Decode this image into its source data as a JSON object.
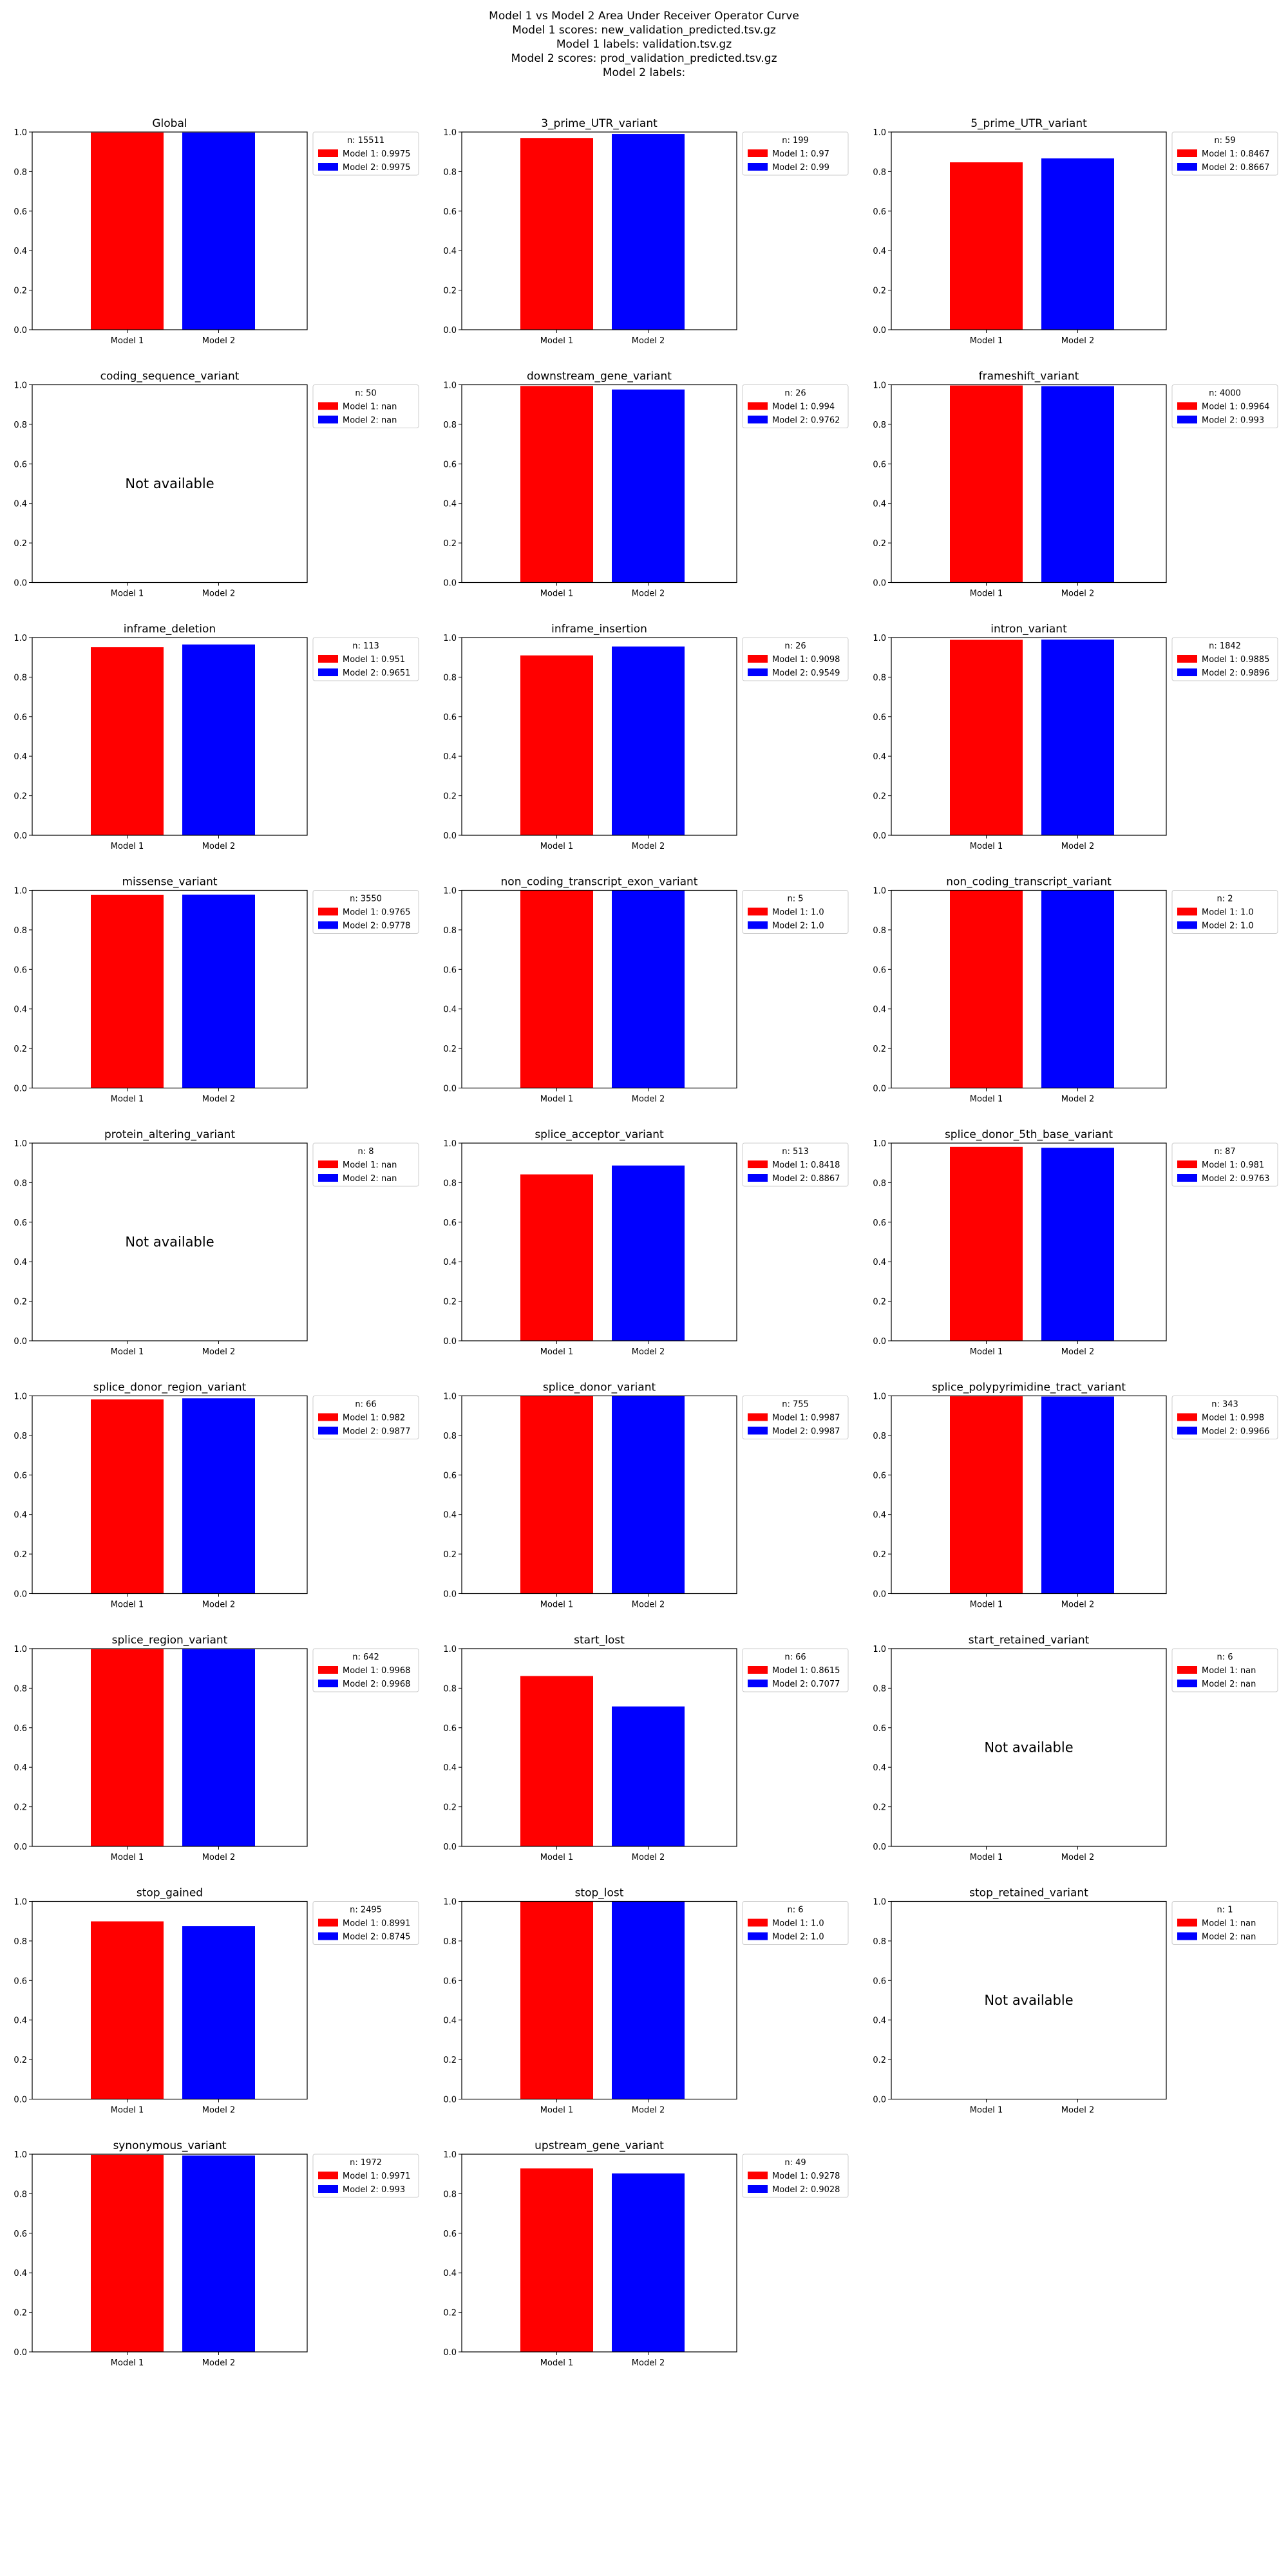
{
  "figure": {
    "title_lines": [
      "Model 1 vs Model 2 Area Under Receiver Operator Curve",
      "Model 1 scores: new_validation_predicted.tsv.gz",
      "Model 1 labels: validation.tsv.gz",
      "Model 2 scores: prod_validation_predicted.tsv.gz",
      "Model 2 labels:"
    ],
    "colors": {
      "model1": "#ff0000",
      "model2": "#0000ff"
    },
    "na_text": "Not available"
  },
  "chart_data": [
    {
      "type": "bar",
      "title": "Global",
      "categories": [
        "Model 1",
        "Model 2"
      ],
      "values": [
        0.9975,
        0.9975
      ],
      "ylim": [
        0,
        1
      ],
      "yticks": [
        "0.0",
        "0.2",
        "0.4",
        "0.6",
        "0.8",
        "1.0"
      ],
      "legend": {
        "n": "n: 15511",
        "entries": [
          "Model 1: 0.9975",
          "Model 2: 0.9975"
        ]
      },
      "available": true
    },
    {
      "type": "bar",
      "title": "3_prime_UTR_variant",
      "categories": [
        "Model 1",
        "Model 2"
      ],
      "values": [
        0.97,
        0.99
      ],
      "ylim": [
        0,
        1
      ],
      "yticks": [
        "0.0",
        "0.2",
        "0.4",
        "0.6",
        "0.8",
        "1.0"
      ],
      "legend": {
        "n": "n: 199",
        "entries": [
          "Model 1: 0.97",
          "Model 2: 0.99"
        ]
      },
      "available": true
    },
    {
      "type": "bar",
      "title": "5_prime_UTR_variant",
      "categories": [
        "Model 1",
        "Model 2"
      ],
      "values": [
        0.8467,
        0.8667
      ],
      "ylim": [
        0,
        1
      ],
      "yticks": [
        "0.0",
        "0.2",
        "0.4",
        "0.6",
        "0.8",
        "1.0"
      ],
      "legend": {
        "n": "n: 59",
        "entries": [
          "Model 1: 0.8467",
          "Model 2: 0.8667"
        ]
      },
      "available": true
    },
    {
      "type": "bar",
      "title": "coding_sequence_variant",
      "categories": [
        "Model 1",
        "Model 2"
      ],
      "values": [
        null,
        null
      ],
      "ylim": [
        0,
        1
      ],
      "yticks": [
        "0.0",
        "0.2",
        "0.4",
        "0.6",
        "0.8",
        "1.0"
      ],
      "legend": {
        "n": "n: 50",
        "entries": [
          "Model 1: nan",
          "Model 2: nan"
        ]
      },
      "available": false
    },
    {
      "type": "bar",
      "title": "downstream_gene_variant",
      "categories": [
        "Model 1",
        "Model 2"
      ],
      "values": [
        0.994,
        0.9762
      ],
      "ylim": [
        0,
        1
      ],
      "yticks": [
        "0.0",
        "0.2",
        "0.4",
        "0.6",
        "0.8",
        "1.0"
      ],
      "legend": {
        "n": "n: 26",
        "entries": [
          "Model 1: 0.994",
          "Model 2: 0.9762"
        ]
      },
      "available": true
    },
    {
      "type": "bar",
      "title": "frameshift_variant",
      "categories": [
        "Model 1",
        "Model 2"
      ],
      "values": [
        0.9964,
        0.993
      ],
      "ylim": [
        0,
        1
      ],
      "yticks": [
        "0.0",
        "0.2",
        "0.4",
        "0.6",
        "0.8",
        "1.0"
      ],
      "legend": {
        "n": "n: 4000",
        "entries": [
          "Model 1: 0.9964",
          "Model 2: 0.993"
        ]
      },
      "available": true
    },
    {
      "type": "bar",
      "title": "inframe_deletion",
      "categories": [
        "Model 1",
        "Model 2"
      ],
      "values": [
        0.951,
        0.9651
      ],
      "ylim": [
        0,
        1
      ],
      "yticks": [
        "0.0",
        "0.2",
        "0.4",
        "0.6",
        "0.8",
        "1.0"
      ],
      "legend": {
        "n": "n: 113",
        "entries": [
          "Model 1: 0.951",
          "Model 2: 0.9651"
        ]
      },
      "available": true
    },
    {
      "type": "bar",
      "title": "inframe_insertion",
      "categories": [
        "Model 1",
        "Model 2"
      ],
      "values": [
        0.9098,
        0.9549
      ],
      "ylim": [
        0,
        1
      ],
      "yticks": [
        "0.0",
        "0.2",
        "0.4",
        "0.6",
        "0.8",
        "1.0"
      ],
      "legend": {
        "n": "n: 26",
        "entries": [
          "Model 1: 0.9098",
          "Model 2: 0.9549"
        ]
      },
      "available": true
    },
    {
      "type": "bar",
      "title": "intron_variant",
      "categories": [
        "Model 1",
        "Model 2"
      ],
      "values": [
        0.9885,
        0.9896
      ],
      "ylim": [
        0,
        1
      ],
      "yticks": [
        "0.0",
        "0.2",
        "0.4",
        "0.6",
        "0.8",
        "1.0"
      ],
      "legend": {
        "n": "n: 1842",
        "entries": [
          "Model 1: 0.9885",
          "Model 2: 0.9896"
        ]
      },
      "available": true
    },
    {
      "type": "bar",
      "title": "missense_variant",
      "categories": [
        "Model 1",
        "Model 2"
      ],
      "values": [
        0.9765,
        0.9778
      ],
      "ylim": [
        0,
        1
      ],
      "yticks": [
        "0.0",
        "0.2",
        "0.4",
        "0.6",
        "0.8",
        "1.0"
      ],
      "legend": {
        "n": "n: 3550",
        "entries": [
          "Model 1: 0.9765",
          "Model 2: 0.9778"
        ]
      },
      "available": true
    },
    {
      "type": "bar",
      "title": "non_coding_transcript_exon_variant",
      "categories": [
        "Model 1",
        "Model 2"
      ],
      "values": [
        1.0,
        1.0
      ],
      "ylim": [
        0,
        1
      ],
      "yticks": [
        "0.0",
        "0.2",
        "0.4",
        "0.6",
        "0.8",
        "1.0"
      ],
      "legend": {
        "n": "n: 5",
        "entries": [
          "Model 1: 1.0",
          "Model 2: 1.0"
        ]
      },
      "available": true
    },
    {
      "type": "bar",
      "title": "non_coding_transcript_variant",
      "categories": [
        "Model 1",
        "Model 2"
      ],
      "values": [
        1.0,
        1.0
      ],
      "ylim": [
        0,
        1
      ],
      "yticks": [
        "0.0",
        "0.2",
        "0.4",
        "0.6",
        "0.8",
        "1.0"
      ],
      "legend": {
        "n": "n: 2",
        "entries": [
          "Model 1: 1.0",
          "Model 2: 1.0"
        ]
      },
      "available": true
    },
    {
      "type": "bar",
      "title": "protein_altering_variant",
      "categories": [
        "Model 1",
        "Model 2"
      ],
      "values": [
        null,
        null
      ],
      "ylim": [
        0,
        1
      ],
      "yticks": [
        "0.0",
        "0.2",
        "0.4",
        "0.6",
        "0.8",
        "1.0"
      ],
      "legend": {
        "n": "n: 8",
        "entries": [
          "Model 1: nan",
          "Model 2: nan"
        ]
      },
      "available": false
    },
    {
      "type": "bar",
      "title": "splice_acceptor_variant",
      "categories": [
        "Model 1",
        "Model 2"
      ],
      "values": [
        0.8418,
        0.8867
      ],
      "ylim": [
        0,
        1
      ],
      "yticks": [
        "0.0",
        "0.2",
        "0.4",
        "0.6",
        "0.8",
        "1.0"
      ],
      "legend": {
        "n": "n: 513",
        "entries": [
          "Model 1: 0.8418",
          "Model 2: 0.8867"
        ]
      },
      "available": true
    },
    {
      "type": "bar",
      "title": "splice_donor_5th_base_variant",
      "categories": [
        "Model 1",
        "Model 2"
      ],
      "values": [
        0.981,
        0.9763
      ],
      "ylim": [
        0,
        1
      ],
      "yticks": [
        "0.0",
        "0.2",
        "0.4",
        "0.6",
        "0.8",
        "1.0"
      ],
      "legend": {
        "n": "n: 87",
        "entries": [
          "Model 1: 0.981",
          "Model 2: 0.9763"
        ]
      },
      "available": true
    },
    {
      "type": "bar",
      "title": "splice_donor_region_variant",
      "categories": [
        "Model 1",
        "Model 2"
      ],
      "values": [
        0.982,
        0.9877
      ],
      "ylim": [
        0,
        1
      ],
      "yticks": [
        "0.0",
        "0.2",
        "0.4",
        "0.6",
        "0.8",
        "1.0"
      ],
      "legend": {
        "n": "n: 66",
        "entries": [
          "Model 1: 0.982",
          "Model 2: 0.9877"
        ]
      },
      "available": true
    },
    {
      "type": "bar",
      "title": "splice_donor_variant",
      "categories": [
        "Model 1",
        "Model 2"
      ],
      "values": [
        0.9987,
        0.9987
      ],
      "ylim": [
        0,
        1
      ],
      "yticks": [
        "0.0",
        "0.2",
        "0.4",
        "0.6",
        "0.8",
        "1.0"
      ],
      "legend": {
        "n": "n: 755",
        "entries": [
          "Model 1: 0.9987",
          "Model 2: 0.9987"
        ]
      },
      "available": true
    },
    {
      "type": "bar",
      "title": "splice_polypyrimidine_tract_variant",
      "categories": [
        "Model 1",
        "Model 2"
      ],
      "values": [
        0.998,
        0.9966
      ],
      "ylim": [
        0,
        1
      ],
      "yticks": [
        "0.0",
        "0.2",
        "0.4",
        "0.6",
        "0.8",
        "1.0"
      ],
      "legend": {
        "n": "n: 343",
        "entries": [
          "Model 1: 0.998",
          "Model 2: 0.9966"
        ]
      },
      "available": true
    },
    {
      "type": "bar",
      "title": "splice_region_variant",
      "categories": [
        "Model 1",
        "Model 2"
      ],
      "values": [
        0.9968,
        0.9968
      ],
      "ylim": [
        0,
        1
      ],
      "yticks": [
        "0.0",
        "0.2",
        "0.4",
        "0.6",
        "0.8",
        "1.0"
      ],
      "legend": {
        "n": "n: 642",
        "entries": [
          "Model 1: 0.9968",
          "Model 2: 0.9968"
        ]
      },
      "available": true
    },
    {
      "type": "bar",
      "title": "start_lost",
      "categories": [
        "Model 1",
        "Model 2"
      ],
      "values": [
        0.8615,
        0.7077
      ],
      "ylim": [
        0,
        1
      ],
      "yticks": [
        "0.0",
        "0.2",
        "0.4",
        "0.6",
        "0.8",
        "1.0"
      ],
      "legend": {
        "n": "n: 66",
        "entries": [
          "Model 1: 0.8615",
          "Model 2: 0.7077"
        ]
      },
      "available": true
    },
    {
      "type": "bar",
      "title": "start_retained_variant",
      "categories": [
        "Model 1",
        "Model 2"
      ],
      "values": [
        null,
        null
      ],
      "ylim": [
        0,
        1
      ],
      "yticks": [
        "0.0",
        "0.2",
        "0.4",
        "0.6",
        "0.8",
        "1.0"
      ],
      "legend": {
        "n": "n: 6",
        "entries": [
          "Model 1: nan",
          "Model 2: nan"
        ]
      },
      "available": false
    },
    {
      "type": "bar",
      "title": "stop_gained",
      "categories": [
        "Model 1",
        "Model 2"
      ],
      "values": [
        0.8991,
        0.8745
      ],
      "ylim": [
        0,
        1
      ],
      "yticks": [
        "0.0",
        "0.2",
        "0.4",
        "0.6",
        "0.8",
        "1.0"
      ],
      "legend": {
        "n": "n: 2495",
        "entries": [
          "Model 1: 0.8991",
          "Model 2: 0.8745"
        ]
      },
      "available": true
    },
    {
      "type": "bar",
      "title": "stop_lost",
      "categories": [
        "Model 1",
        "Model 2"
      ],
      "values": [
        1.0,
        1.0
      ],
      "ylim": [
        0,
        1
      ],
      "yticks": [
        "0.0",
        "0.2",
        "0.4",
        "0.6",
        "0.8",
        "1.0"
      ],
      "legend": {
        "n": "n: 6",
        "entries": [
          "Model 1: 1.0",
          "Model 2: 1.0"
        ]
      },
      "available": true
    },
    {
      "type": "bar",
      "title": "stop_retained_variant",
      "categories": [
        "Model 1",
        "Model 2"
      ],
      "values": [
        null,
        null
      ],
      "ylim": [
        0,
        1
      ],
      "yticks": [
        "0.0",
        "0.2",
        "0.4",
        "0.6",
        "0.8",
        "1.0"
      ],
      "legend": {
        "n": "n: 1",
        "entries": [
          "Model 1: nan",
          "Model 2: nan"
        ]
      },
      "available": false
    },
    {
      "type": "bar",
      "title": "synonymous_variant",
      "categories": [
        "Model 1",
        "Model 2"
      ],
      "values": [
        0.9971,
        0.993
      ],
      "ylim": [
        0,
        1
      ],
      "yticks": [
        "0.0",
        "0.2",
        "0.4",
        "0.6",
        "0.8",
        "1.0"
      ],
      "legend": {
        "n": "n: 1972",
        "entries": [
          "Model 1: 0.9971",
          "Model 2: 0.993"
        ]
      },
      "available": true
    },
    {
      "type": "bar",
      "title": "upstream_gene_variant",
      "categories": [
        "Model 1",
        "Model 2"
      ],
      "values": [
        0.9278,
        0.9028
      ],
      "ylim": [
        0,
        1
      ],
      "yticks": [
        "0.0",
        "0.2",
        "0.4",
        "0.6",
        "0.8",
        "1.0"
      ],
      "legend": {
        "n": "n: 49",
        "entries": [
          "Model 1: 0.9278",
          "Model 2: 0.9028"
        ]
      },
      "available": true
    }
  ]
}
